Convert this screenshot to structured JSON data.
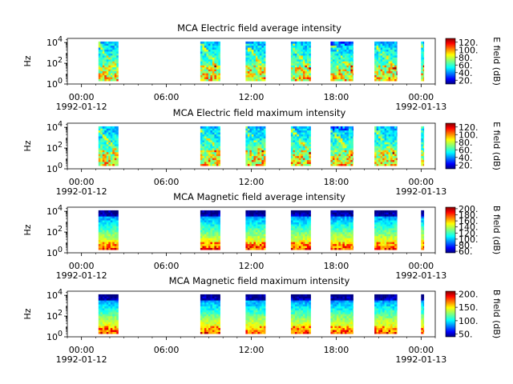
{
  "chart_data": [
    {
      "type": "heatmap",
      "title": "MCA  Electric field average intensity",
      "ylabel": "Hz",
      "yscale": "log",
      "yticks": [
        "10^0",
        "10^2",
        "10^4"
      ],
      "x_tick_labels": [
        "00:00",
        "06:00",
        "12:00",
        "18:00",
        "00:00"
      ],
      "x_date_labels": [
        "1992-01-12",
        "1992-01-13"
      ],
      "x_hours": [
        0,
        6,
        12,
        18,
        24
      ],
      "xlim_hours": [
        -1,
        25
      ],
      "colorbar_label": "E field (dB)",
      "colorbar_ticks": [
        20,
        40,
        60,
        80,
        100,
        120
      ],
      "clim": [
        10,
        130
      ],
      "colormap": "jet",
      "observation_blocks_hours": [
        [
          1.2,
          2.6
        ],
        [
          8.4,
          9.8
        ],
        [
          11.6,
          13.0
        ],
        [
          14.8,
          16.2
        ],
        [
          17.6,
          19.2
        ],
        [
          20.7,
          22.3
        ],
        [
          24.0,
          24.2
        ]
      ],
      "typical_level": "green-yellow, peaks near 110-120 dB at low frequencies"
    },
    {
      "type": "heatmap",
      "title": "MCA  Electric field maximum intensity",
      "ylabel": "Hz",
      "yscale": "log",
      "yticks": [
        "10^0",
        "10^2",
        "10^4"
      ],
      "x_tick_labels": [
        "00:00",
        "06:00",
        "12:00",
        "18:00",
        "00:00"
      ],
      "x_date_labels": [
        "1992-01-12",
        "1992-01-13"
      ],
      "x_hours": [
        0,
        6,
        12,
        18,
        24
      ],
      "xlim_hours": [
        -1,
        25
      ],
      "colorbar_label": "E field (dB)",
      "colorbar_ticks": [
        20,
        40,
        60,
        80,
        100,
        120
      ],
      "clim": [
        10,
        130
      ],
      "colormap": "jet",
      "observation_blocks_hours": [
        [
          1.2,
          2.6
        ],
        [
          8.4,
          9.8
        ],
        [
          11.6,
          13.0
        ],
        [
          14.8,
          16.2
        ],
        [
          17.6,
          19.2
        ],
        [
          20.7,
          22.3
        ],
        [
          24.0,
          24.2
        ]
      ]
    },
    {
      "type": "heatmap",
      "title": "MCA  Magnetic field average intensity",
      "ylabel": "Hz",
      "yscale": "log",
      "yticks": [
        "10^0",
        "10^2",
        "10^4"
      ],
      "x_tick_labels": [
        "00:00",
        "06:00",
        "12:00",
        "18:00",
        "00:00"
      ],
      "x_date_labels": [
        "1992-01-12",
        "1992-01-13"
      ],
      "x_hours": [
        0,
        6,
        12,
        18,
        24
      ],
      "xlim_hours": [
        -1,
        25
      ],
      "colorbar_label": "B field (dB)",
      "colorbar_ticks": [
        60,
        80,
        100,
        120,
        140,
        160,
        180,
        200
      ],
      "clim": [
        55,
        205
      ],
      "colormap": "jet",
      "observation_blocks_hours": [
        [
          1.2,
          2.6
        ],
        [
          8.4,
          9.8
        ],
        [
          11.6,
          13.0
        ],
        [
          14.8,
          16.2
        ],
        [
          17.6,
          19.2
        ],
        [
          20.7,
          22.3
        ],
        [
          24.0,
          24.2
        ]
      ]
    },
    {
      "type": "heatmap",
      "title": "MCA  Magnetic field maximum intensity",
      "ylabel": "Hz",
      "yscale": "log",
      "yticks": [
        "10^0",
        "10^2",
        "10^4"
      ],
      "x_tick_labels": [
        "00:00",
        "06:00",
        "12:00",
        "18:00",
        "00:00"
      ],
      "x_date_labels": [
        "1992-01-12",
        "1992-01-13"
      ],
      "x_hours": [
        0,
        6,
        12,
        18,
        24
      ],
      "xlim_hours": [
        -1,
        25
      ],
      "colorbar_label": "B field (dB)",
      "colorbar_ticks": [
        50,
        100,
        150,
        200
      ],
      "clim": [
        40,
        210
      ],
      "colormap": "jet",
      "observation_blocks_hours": [
        [
          1.2,
          2.6
        ],
        [
          8.4,
          9.8
        ],
        [
          11.6,
          13.0
        ],
        [
          14.8,
          16.2
        ],
        [
          17.6,
          19.2
        ],
        [
          20.7,
          22.3
        ],
        [
          24.0,
          24.2
        ]
      ]
    }
  ]
}
